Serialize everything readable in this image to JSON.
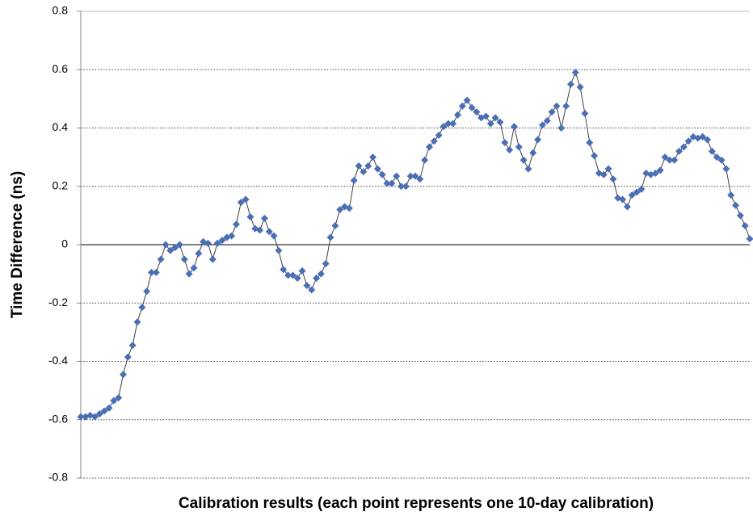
{
  "chart_data": {
    "type": "line",
    "y_label": "Time Difference (ns)",
    "x_label": "Calibration results (each point represents one 10-day calibration)",
    "color": "#4a6fb5",
    "line_color": "#404040",
    "ylim": [
      -0.8,
      0.8
    ],
    "yticks": [
      -0.8,
      -0.6,
      -0.4,
      -0.2,
      0,
      0.2,
      0.4,
      0.6,
      0.8
    ],
    "grid": true,
    "values": [
      -0.59,
      -0.59,
      -0.585,
      -0.59,
      -0.58,
      -0.57,
      -0.56,
      -0.535,
      -0.525,
      -0.445,
      -0.385,
      -0.345,
      -0.265,
      -0.215,
      -0.16,
      -0.095,
      -0.095,
      -0.05,
      0,
      -0.02,
      -0.01,
      0,
      -0.05,
      -0.1,
      -0.08,
      -0.03,
      0.01,
      0.005,
      -0.05,
      0.005,
      0.015,
      0.025,
      0.03,
      0.07,
      0.145,
      0.155,
      0.095,
      0.055,
      0.05,
      0.09,
      0.045,
      0.03,
      -0.02,
      -0.085,
      -0.105,
      -0.105,
      -0.115,
      -0.09,
      -0.14,
      -0.155,
      -0.115,
      -0.1,
      -0.065,
      0.025,
      0.065,
      0.12,
      0.13,
      0.125,
      0.22,
      0.27,
      0.25,
      0.27,
      0.3,
      0.26,
      0.24,
      0.21,
      0.21,
      0.235,
      0.2,
      0.2,
      0.235,
      0.235,
      0.225,
      0.29,
      0.335,
      0.355,
      0.375,
      0.405,
      0.415,
      0.415,
      0.445,
      0.475,
      0.495,
      0.47,
      0.455,
      0.435,
      0.44,
      0.415,
      0.435,
      0.42,
      0.35,
      0.325,
      0.405,
      0.335,
      0.29,
      0.26,
      0.315,
      0.36,
      0.41,
      0.425,
      0.455,
      0.475,
      0.4,
      0.475,
      0.55,
      0.59,
      0.54,
      0.45,
      0.35,
      0.305,
      0.245,
      0.24,
      0.26,
      0.225,
      0.16,
      0.155,
      0.13,
      0.17,
      0.18,
      0.19,
      0.245,
      0.24,
      0.245,
      0.255,
      0.3,
      0.29,
      0.29,
      0.32,
      0.335,
      0.355,
      0.37,
      0.365,
      0.37,
      0.36,
      0.32,
      0.3,
      0.29,
      0.26,
      0.17,
      0.135,
      0.1,
      0.065,
      0.02
    ]
  }
}
